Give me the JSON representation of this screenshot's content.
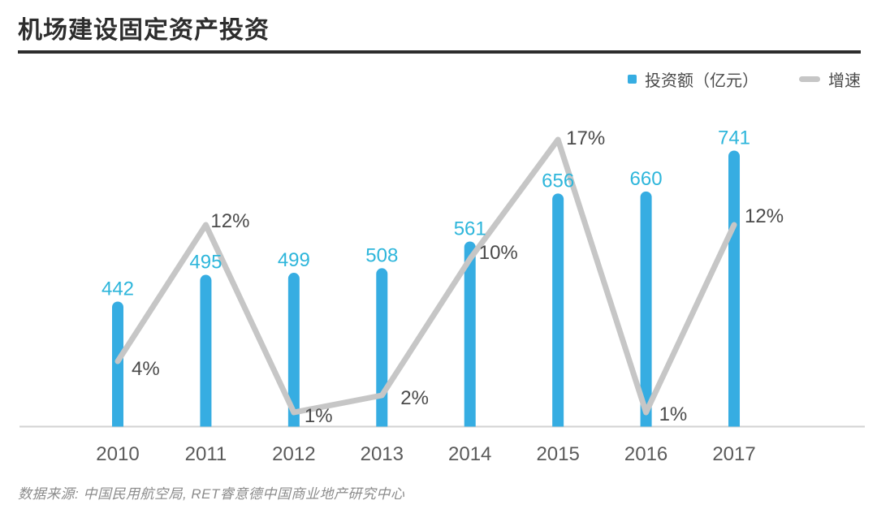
{
  "page": {
    "title": "机场建设固定资产投资",
    "source": "数据来源: 中国民用航空局, RET睿意德中国商业地产研究中心"
  },
  "legend": {
    "bars_label": "投资额（亿元）",
    "line_label": "增速"
  },
  "colors": {
    "bar": "#36ADE2",
    "bar_value_label": "#2EB6DB",
    "line": "#C6C6C6",
    "percent_label": "#4A4A4A",
    "axis": "#D2D2D2",
    "year_label": "#5A5A5A",
    "title": "#2D2D2D",
    "legend_text": "#4A4A4A",
    "source_text": "#8C8C8C"
  },
  "chart_data": {
    "type": "bar",
    "subtype": "bar-line-combo",
    "categories": [
      "2010",
      "2011",
      "2012",
      "2013",
      "2014",
      "2015",
      "2016",
      "2017"
    ],
    "series": [
      {
        "name": "投资额（亿元）",
        "type": "bar",
        "unit": "亿元",
        "values": [
          442,
          495,
          499,
          508,
          561,
          656,
          660,
          741
        ],
        "labels": [
          "442",
          "495",
          "499",
          "508",
          "561",
          "656",
          "660",
          "741"
        ]
      },
      {
        "name": "增速",
        "type": "line",
        "unit": "%",
        "values": [
          4,
          12,
          1,
          2,
          10,
          17,
          1,
          12
        ],
        "labels": [
          "4%",
          "12%",
          "1%",
          "2%",
          "10%",
          "17%",
          "1%",
          "12%"
        ]
      }
    ],
    "title": "机场建设固定资产投资",
    "xlabel": "",
    "ylabel": "",
    "grid": false,
    "legend_position": "top-right",
    "value_axis_visible": false
  }
}
